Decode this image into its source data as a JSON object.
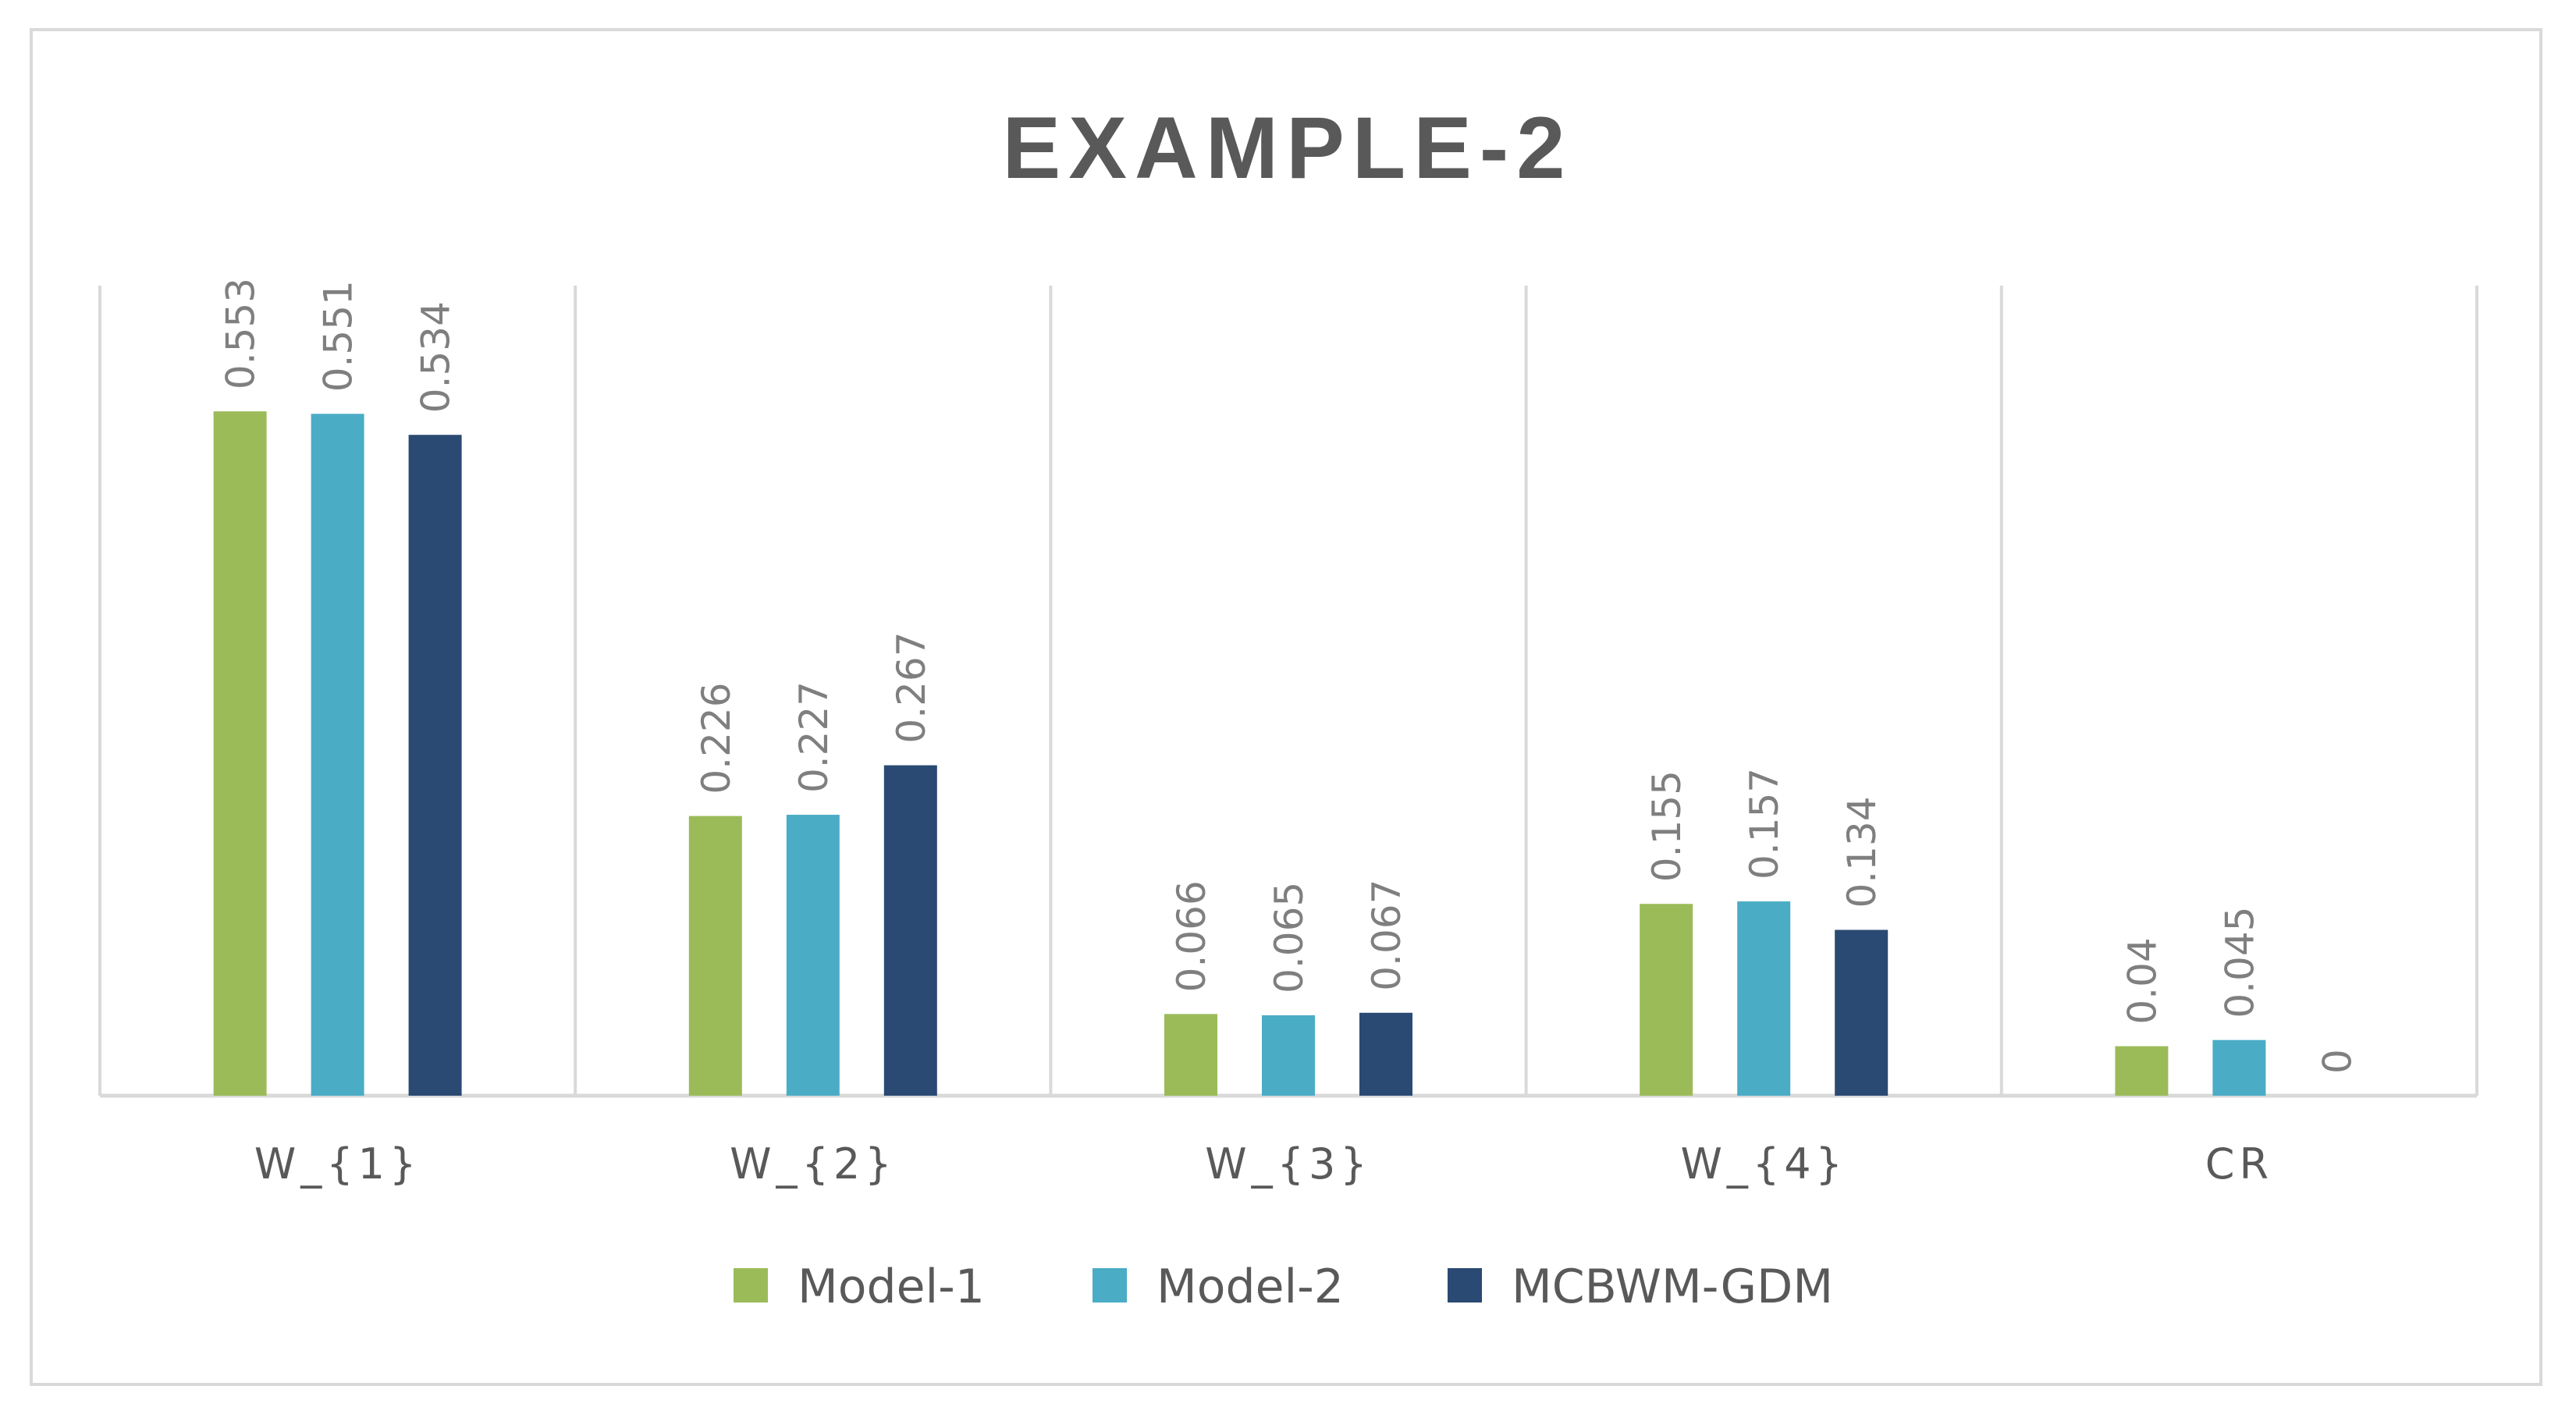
{
  "chart_data": {
    "type": "bar",
    "title": "EXAMPLE-2",
    "categories": [
      "W_{1}",
      "W_{2}",
      "W_{3}",
      "W_{4}",
      "CR"
    ],
    "series": [
      {
        "name": "Model-1",
        "color": "#9bbb59",
        "values": [
          0.553,
          0.226,
          0.066,
          0.155,
          0.04
        ]
      },
      {
        "name": "Model-2",
        "color": "#4bacc6",
        "values": [
          0.551,
          0.227,
          0.065,
          0.157,
          0.045
        ]
      },
      {
        "name": "MCBWM-GDM",
        "color": "#2a4a73",
        "values": [
          0.534,
          0.267,
          0.067,
          0.134,
          0
        ]
      }
    ],
    "ylim": [
      0,
      0.6
    ],
    "grid": "vertical category separators",
    "legend_position": "bottom",
    "data_labels": "rotated vertical above bars"
  }
}
